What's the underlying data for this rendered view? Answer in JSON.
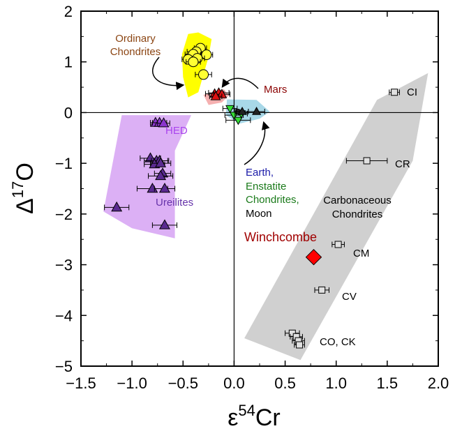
{
  "chart_data": {
    "type": "scatter",
    "xlabel": "ε54Cr",
    "ylabel": "Δ17O",
    "xlim": [
      -1.5,
      2.0
    ],
    "ylim": [
      -5,
      2
    ],
    "xticks": [
      -1.5,
      -1.0,
      -0.5,
      0.0,
      0.5,
      1.0,
      1.5,
      2.0
    ],
    "xtick_labels": [
      "−1.5",
      "−1.0",
      "−0.5",
      "0.0",
      "0.5",
      "1.0",
      "1.5",
      "2.0"
    ],
    "yticks": [
      -5,
      -4,
      -3,
      -2,
      -1,
      0,
      1,
      2
    ],
    "ytick_labels": [
      "−5",
      "−4",
      "−3",
      "−2",
      "−1",
      "0",
      "1",
      "2"
    ],
    "grid": false,
    "colors": {
      "ordinary_region": "#ffff00",
      "ordinary_marker": "#ffff33",
      "mars_region": "#f5b0b0",
      "mars_marker": "#dd1111",
      "earth_region": "#a8d8e8",
      "enstatite_marker": "#33dd33",
      "earth_marker": "#222222",
      "hed_region": "#dcb0f5",
      "hed_marker": "#8a35cc",
      "ureilite_marker": "#5a2a90",
      "carb_region": "#d0d0d0",
      "carb_marker": "#e0e0e0",
      "winchcombe": "#ff0000",
      "label_ordinary": "#8b4513",
      "label_mars": "#8b0000",
      "label_hed": "#aa44ee",
      "label_ureilites": "#6633aa",
      "label_earth": "#1a1aa8",
      "label_enstatite": "#1a7a1a",
      "label_winchcombe": "#a00000"
    },
    "regions": [
      {
        "group": "ordinary",
        "polygon": [
          [
            -0.51,
            1.15
          ],
          [
            -0.45,
            1.55
          ],
          [
            -0.35,
            1.58
          ],
          [
            -0.22,
            1.45
          ],
          [
            -0.25,
            1.1
          ],
          [
            -0.35,
            0.4
          ],
          [
            -0.45,
            0.3
          ],
          [
            -0.5,
            0.7
          ]
        ]
      },
      {
        "group": "mars",
        "polygon": [
          [
            -0.3,
            0.35
          ],
          [
            -0.1,
            0.46
          ],
          [
            -0.05,
            0.34
          ],
          [
            -0.12,
            0.2
          ],
          [
            -0.25,
            0.15
          ]
        ]
      },
      {
        "group": "earth",
        "polygon": [
          [
            -0.07,
            0.26
          ],
          [
            0.22,
            0.25
          ],
          [
            0.35,
            0.02
          ],
          [
            0.25,
            -0.12
          ],
          [
            0.05,
            -0.22
          ],
          [
            -0.08,
            -0.05
          ]
        ]
      },
      {
        "group": "hed",
        "polygon": [
          [
            -1.1,
            -0.05
          ],
          [
            -0.42,
            -0.05
          ],
          [
            -0.58,
            -0.75
          ],
          [
            -0.58,
            -2.48
          ],
          [
            -1.0,
            -2.28
          ],
          [
            -1.28,
            -1.95
          ]
        ]
      },
      {
        "group": "carbonaceous",
        "polygon": [
          [
            0.1,
            -4.45
          ],
          [
            1.4,
            0.25
          ],
          [
            1.9,
            0.78
          ],
          [
            1.75,
            -0.95
          ],
          [
            0.65,
            -4.88
          ]
        ]
      }
    ],
    "series": [
      {
        "name": "Ordinary Chondrites",
        "marker": "circle",
        "points": [
          {
            "x": -0.33,
            "y": 1.27,
            "xerr": 0.06
          },
          {
            "x": -0.37,
            "y": 1.2,
            "xerr": 0.09
          },
          {
            "x": -0.4,
            "y": 1.15,
            "xerr": 0.08
          },
          {
            "x": -0.27,
            "y": 1.14,
            "xerr": 0.06
          },
          {
            "x": -0.36,
            "y": 1.07,
            "xerr": 0.07
          },
          {
            "x": -0.45,
            "y": 1.05,
            "xerr": 0.06
          },
          {
            "x": -0.4,
            "y": 1.0,
            "xerr": 0.07
          },
          {
            "x": -0.3,
            "y": 0.75,
            "xerr": 0.08
          }
        ]
      },
      {
        "name": "Mars",
        "marker": "triangle",
        "points": [
          {
            "x": -0.19,
            "y": 0.37,
            "xerr": 0.09
          },
          {
            "x": -0.15,
            "y": 0.39,
            "xerr": 0.1
          },
          {
            "x": -0.12,
            "y": 0.36,
            "xerr": 0.08
          },
          {
            "x": -0.18,
            "y": 0.32,
            "xerr": 0.06
          }
        ]
      },
      {
        "name": "Enstatite Chondrites",
        "marker": "triangle-down",
        "points": [
          {
            "x": -0.04,
            "y": 0.08,
            "xerr": 0.07
          },
          {
            "x": 0.0,
            "y": -0.05,
            "xerr": 0.09
          },
          {
            "x": 0.04,
            "y": -0.15,
            "xerr": 0.12
          },
          {
            "x": 0.07,
            "y": -0.02,
            "xerr": 0.06
          }
        ]
      },
      {
        "name": "Earth",
        "marker": "circle",
        "points": [
          {
            "x": 0.04,
            "y": 0.02,
            "xerr": 0.03
          }
        ]
      },
      {
        "name": "Moon",
        "marker": "triangle",
        "points": [
          {
            "x": 0.08,
            "y": 0.02,
            "xerr": 0.06
          },
          {
            "x": 0.22,
            "y": 0.02,
            "xerr": 0.08
          }
        ]
      },
      {
        "name": "HED",
        "marker": "triangle",
        "points": [
          {
            "x": -0.77,
            "y": -0.2,
            "xerr": 0.05
          },
          {
            "x": -0.73,
            "y": -0.2,
            "xerr": 0.07
          },
          {
            "x": -0.69,
            "y": -0.21,
            "xerr": 0.06
          }
        ]
      },
      {
        "name": "Ureilites",
        "marker": "triangle",
        "points": [
          {
            "x": -0.82,
            "y": -0.9,
            "xerr": 0.1
          },
          {
            "x": -0.76,
            "y": -0.95,
            "xerr": 0.12
          },
          {
            "x": -0.73,
            "y": -0.95,
            "xerr": 0.08
          },
          {
            "x": -0.78,
            "y": -1.02,
            "xerr": 0.1
          },
          {
            "x": -0.72,
            "y": -1.0,
            "xerr": 0.1
          },
          {
            "x": -0.7,
            "y": -1.2,
            "xerr": 0.08
          },
          {
            "x": -0.72,
            "y": -1.25,
            "xerr": 0.12
          },
          {
            "x": -0.8,
            "y": -1.5,
            "xerr": 0.15
          },
          {
            "x": -0.68,
            "y": -1.5,
            "xerr": 0.1
          },
          {
            "x": -1.15,
            "y": -1.87,
            "xerr": 0.12
          },
          {
            "x": -0.68,
            "y": -2.22,
            "xerr": 0.12
          }
        ]
      },
      {
        "name": "Carbonaceous Chondrites",
        "marker": "square",
        "points": [
          {
            "x": 1.57,
            "y": 0.4,
            "xerr": 0.05
          },
          {
            "x": 1.3,
            "y": -0.95,
            "xerr": 0.2
          },
          {
            "x": 1.02,
            "y": -2.6,
            "xerr": 0.06
          },
          {
            "x": 0.86,
            "y": -3.5,
            "xerr": 0.07
          },
          {
            "x": 0.57,
            "y": -4.35,
            "xerr": 0.07
          },
          {
            "x": 0.61,
            "y": -4.42,
            "xerr": 0.06
          },
          {
            "x": 0.63,
            "y": -4.5,
            "xerr": 0.06
          },
          {
            "x": 0.64,
            "y": -4.58,
            "xerr": 0.05
          }
        ]
      },
      {
        "name": "Winchcombe",
        "marker": "diamond",
        "points": [
          {
            "x": 0.78,
            "y": -2.85
          }
        ]
      }
    ],
    "annotations": {
      "ordinary": [
        "Ordinary",
        "Chondrites"
      ],
      "mars": "Mars",
      "hed": "HED",
      "ureilites": "Ureilites",
      "earth": "Earth,",
      "enstatite": [
        "Enstatite",
        "Chondrites,"
      ],
      "moon": "Moon",
      "carbonaceous": [
        "Carbonaceous",
        "Chondrites"
      ],
      "winchcombe": "Winchcombe",
      "ci": "CI",
      "cr": "CR",
      "cm": "CM",
      "cv": "CV",
      "co_ck": "CO, CK"
    }
  }
}
